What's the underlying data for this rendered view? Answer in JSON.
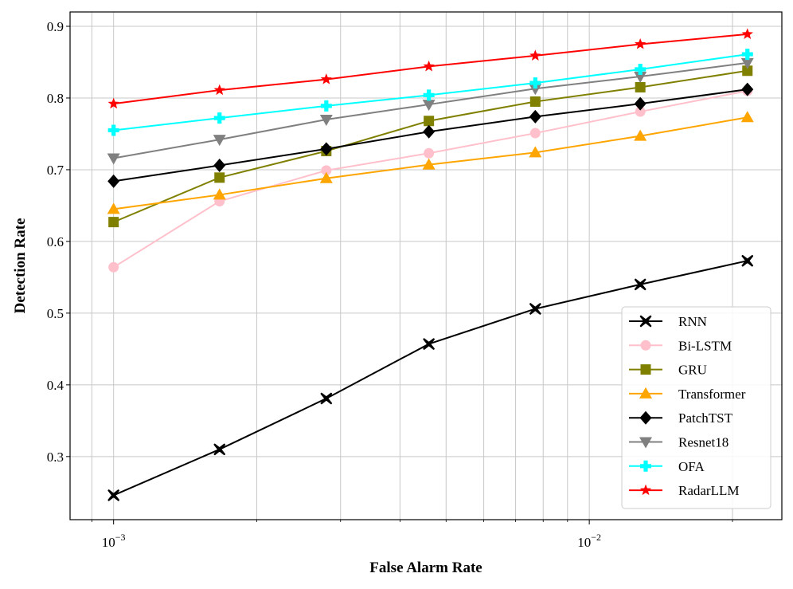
{
  "chart_data": {
    "type": "line",
    "title": "",
    "xlabel": "False Alarm Rate",
    "ylabel": "Detection Rate",
    "xscale": "log",
    "xlim": [
      0.00081,
      0.0254
    ],
    "ylim": [
      0.212,
      0.92
    ],
    "grid": true,
    "legend_position": "lower-right",
    "x": [
      0.001,
      0.00167,
      0.0028,
      0.0046,
      0.0077,
      0.0128,
      0.0215
    ],
    "x_major_ticks": [
      {
        "value": 0.001,
        "base": "10",
        "exp": "−3"
      },
      {
        "value": 0.01,
        "base": "10",
        "exp": "−2"
      }
    ],
    "x_minor_ticks": [
      0.0009,
      0.002,
      0.003,
      0.004,
      0.005,
      0.006,
      0.007,
      0.008,
      0.009,
      0.02
    ],
    "y_ticks": [
      {
        "value": 0.3,
        "label": "0.3"
      },
      {
        "value": 0.4,
        "label": "0.4"
      },
      {
        "value": 0.5,
        "label": "0.5"
      },
      {
        "value": 0.6,
        "label": "0.6"
      },
      {
        "value": 0.7,
        "label": "0.7"
      },
      {
        "value": 0.8,
        "label": "0.8"
      },
      {
        "value": 0.9,
        "label": "0.9"
      }
    ],
    "series": [
      {
        "name": "RNN",
        "color": "#000000",
        "marker": "x",
        "values": [
          0.246,
          0.31,
          0.381,
          0.457,
          0.506,
          0.54,
          0.573
        ]
      },
      {
        "name": "Bi-LSTM",
        "color": "#ffc0cb",
        "marker": "circle",
        "values": [
          0.564,
          0.656,
          0.699,
          0.723,
          0.751,
          0.781,
          0.81
        ]
      },
      {
        "name": "GRU",
        "color": "#808000",
        "marker": "square",
        "values": [
          0.627,
          0.689,
          0.726,
          0.768,
          0.795,
          0.815,
          0.838
        ]
      },
      {
        "name": "Transformer",
        "color": "#ffa500",
        "marker": "triangle-up",
        "values": [
          0.645,
          0.665,
          0.688,
          0.707,
          0.724,
          0.747,
          0.773
        ]
      },
      {
        "name": "PatchTST",
        "color": "#000000",
        "marker": "diamond",
        "values": [
          0.684,
          0.706,
          0.729,
          0.753,
          0.774,
          0.792,
          0.812
        ]
      },
      {
        "name": "Resnet18",
        "color": "#808080",
        "marker": "triangle-down",
        "values": [
          0.716,
          0.742,
          0.77,
          0.791,
          0.813,
          0.83,
          0.849
        ]
      },
      {
        "name": "OFA",
        "color": "#00ffff",
        "marker": "plus",
        "values": [
          0.755,
          0.772,
          0.789,
          0.804,
          0.821,
          0.84,
          0.861
        ]
      },
      {
        "name": "RadarLLM",
        "color": "#ff0000",
        "marker": "star",
        "values": [
          0.792,
          0.811,
          0.826,
          0.844,
          0.859,
          0.875,
          0.889
        ]
      }
    ]
  }
}
